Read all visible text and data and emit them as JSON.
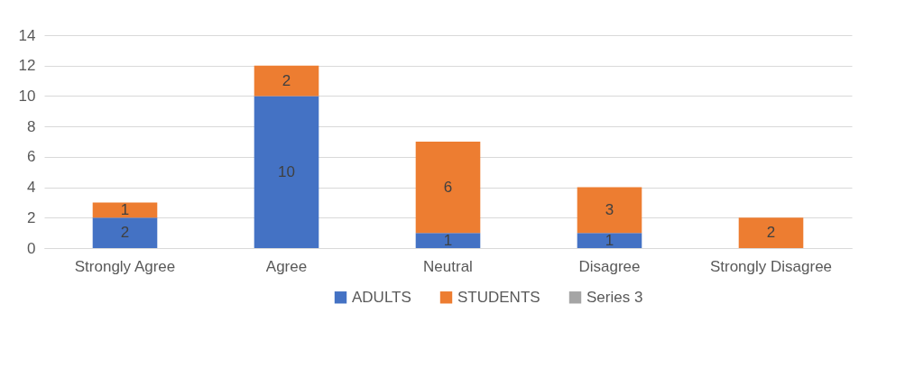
{
  "chart_data": {
    "type": "bar",
    "stacked": true,
    "categories": [
      "Strongly Agree",
      "Agree",
      "Neutral",
      "Disagree",
      "Strongly Disagree"
    ],
    "series": [
      {
        "name": "ADULTS",
        "color": "#4472c4",
        "values": [
          2,
          10,
          1,
          1,
          null
        ]
      },
      {
        "name": "STUDENTS",
        "color": "#ed7d31",
        "values": [
          1,
          2,
          6,
          3,
          2
        ]
      },
      {
        "name": "Series 3",
        "color": "#a5a5a5",
        "values": [
          null,
          null,
          null,
          null,
          null
        ]
      }
    ],
    "ylim": [
      0,
      14
    ],
    "yticks": [
      0,
      2,
      4,
      6,
      8,
      10,
      12,
      14
    ],
    "grid": "y",
    "legend": "bottom",
    "data_labels": true
  }
}
